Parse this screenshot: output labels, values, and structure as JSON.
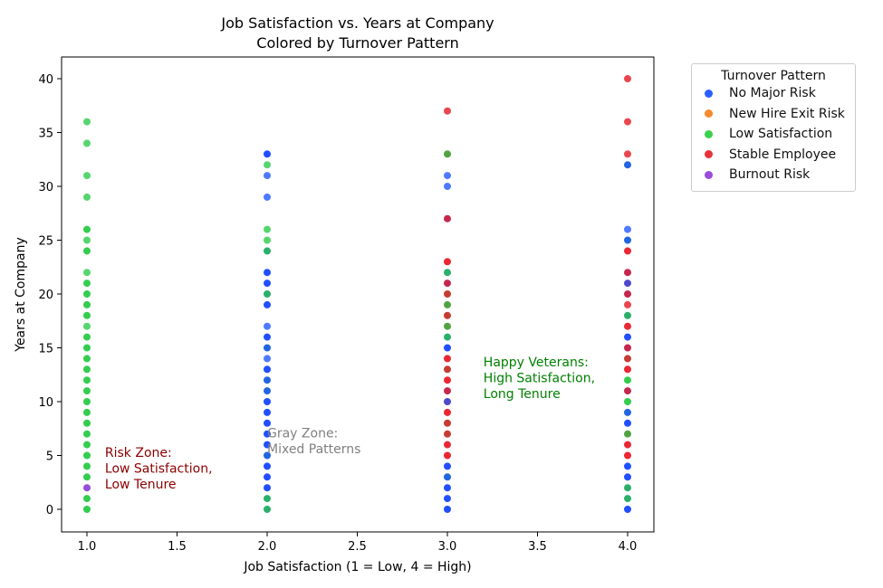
{
  "chart_data": {
    "type": "scatter",
    "title": "Job Satisfaction vs. Years at Company",
    "subtitle": "Colored by Turnover Pattern",
    "xlabel": "Job Satisfaction (1 = Low, 4 = High)",
    "ylabel": "Years at Company",
    "xlim": [
      0.86,
      4.14
    ],
    "ylim": [
      -2,
      42
    ],
    "xticks": [
      "1.0",
      "1.5",
      "2.0",
      "2.5",
      "3.0",
      "3.5",
      "4.0"
    ],
    "yticks": [
      "0",
      "5",
      "10",
      "15",
      "20",
      "25",
      "30",
      "35",
      "40"
    ],
    "grid": false,
    "legend": {
      "title": "Turnover Pattern",
      "placement": "outside-top-right",
      "entries": [
        {
          "label": "No Major Risk",
          "color": "#2a5fff"
        },
        {
          "label": "New Hire Exit Risk",
          "color": "#f78a2c"
        },
        {
          "label": "Low Satisfaction",
          "color": "#3ad24a"
        },
        {
          "label": "Stable Employee",
          "color": "#e8333a"
        },
        {
          "label": "Burnout Risk",
          "color": "#9b4de0"
        }
      ]
    },
    "annotations": [
      {
        "lines": [
          "Risk Zone:",
          "Low Satisfaction,",
          "Low Tenure"
        ],
        "x": 1.1,
        "y": 5.2,
        "color": "#8b0000"
      },
      {
        "lines": [
          "Gray Zone:",
          "Mixed Patterns"
        ],
        "x": 2.0,
        "y": 7.0,
        "color": "#808080"
      },
      {
        "lines": [
          "Happy Veterans:",
          "High Satisfaction,",
          "Long Tenure"
        ],
        "x": 3.2,
        "y": 13.6,
        "color": "#008000"
      }
    ],
    "points": [
      [
        1,
        36,
        "#45d160"
      ],
      [
        1,
        34,
        "#45d160"
      ],
      [
        1,
        31,
        "#45d160"
      ],
      [
        1,
        29,
        "#45d160"
      ],
      [
        1,
        26,
        "#1ec83c"
      ],
      [
        1,
        25,
        "#45d160"
      ],
      [
        1,
        24,
        "#1ec83c"
      ],
      [
        1,
        22,
        "#45d160"
      ],
      [
        1,
        21,
        "#1ec83c"
      ],
      [
        1,
        20,
        "#1ec83c"
      ],
      [
        1,
        19,
        "#1ec83c"
      ],
      [
        1,
        18,
        "#1ec83c"
      ],
      [
        1,
        17,
        "#45d160"
      ],
      [
        1,
        16,
        "#1ec83c"
      ],
      [
        1,
        15,
        "#1ec83c"
      ],
      [
        1,
        14,
        "#1ec83c"
      ],
      [
        1,
        13,
        "#1ec83c"
      ],
      [
        1,
        12,
        "#1ec83c"
      ],
      [
        1,
        11,
        "#1ec83c"
      ],
      [
        1,
        10,
        "#1ec83c"
      ],
      [
        1,
        9,
        "#1ec83c"
      ],
      [
        1,
        8,
        "#1ec83c"
      ],
      [
        1,
        7,
        "#1ec83c"
      ],
      [
        1,
        6,
        "#1ec83c"
      ],
      [
        1,
        5,
        "#1ec83c"
      ],
      [
        1,
        4,
        "#1ec83c"
      ],
      [
        1,
        3,
        "#1ec83c"
      ],
      [
        1,
        2,
        "#8a3ad8"
      ],
      [
        1,
        1,
        "#1ec83c"
      ],
      [
        1,
        0,
        "#1ec83c"
      ],
      [
        2,
        33,
        "#0a3dff"
      ],
      [
        2,
        32,
        "#45d160"
      ],
      [
        2,
        31,
        "#3d6bff"
      ],
      [
        2,
        29,
        "#3d6bff"
      ],
      [
        2,
        26,
        "#45d160"
      ],
      [
        2,
        25,
        "#45d160"
      ],
      [
        2,
        24,
        "#14a85a"
      ],
      [
        2,
        22,
        "#0a3dff"
      ],
      [
        2,
        21,
        "#0a3dff"
      ],
      [
        2,
        20,
        "#14a85a"
      ],
      [
        2,
        19,
        "#0a3dff"
      ],
      [
        2,
        17,
        "#3d6bff"
      ],
      [
        2,
        16,
        "#0a3dff"
      ],
      [
        2,
        15,
        "#0a55dd"
      ],
      [
        2,
        14,
        "#3d6bff"
      ],
      [
        2,
        13,
        "#0a3dff"
      ],
      [
        2,
        12,
        "#0a55dd"
      ],
      [
        2,
        11,
        "#0a55dd"
      ],
      [
        2,
        10,
        "#0a3dff"
      ],
      [
        2,
        9,
        "#0a3dff"
      ],
      [
        2,
        8,
        "#0a3dff"
      ],
      [
        2,
        7,
        "#0a3dff"
      ],
      [
        2,
        6,
        "#0a3dff"
      ],
      [
        2,
        5,
        "#0a55dd"
      ],
      [
        2,
        4,
        "#0a3dff"
      ],
      [
        2,
        3,
        "#0a3dff"
      ],
      [
        2,
        2,
        "#0a3dff"
      ],
      [
        2,
        1,
        "#14a85a"
      ],
      [
        2,
        0,
        "#14a85a"
      ],
      [
        3,
        37,
        "#e8333a"
      ],
      [
        3,
        33,
        "#3f9a2e"
      ],
      [
        3,
        31,
        "#3d6bff"
      ],
      [
        3,
        30,
        "#3d6bff"
      ],
      [
        3,
        27,
        "#c0103a"
      ],
      [
        3,
        23,
        "#e8101e"
      ],
      [
        3,
        22,
        "#14a85a"
      ],
      [
        3,
        21,
        "#c0103a"
      ],
      [
        3,
        20,
        "#c0281e"
      ],
      [
        3,
        19,
        "#3f9a2e"
      ],
      [
        3,
        18,
        "#c0281e"
      ],
      [
        3,
        17,
        "#3f9a2e"
      ],
      [
        3,
        16,
        "#14a85a"
      ],
      [
        3,
        15,
        "#0a3dff"
      ],
      [
        3,
        14,
        "#e8101e"
      ],
      [
        3,
        13,
        "#c0281e"
      ],
      [
        3,
        12,
        "#e8101e"
      ],
      [
        3,
        11,
        "#c0103a"
      ],
      [
        3,
        10,
        "#3b35c8"
      ],
      [
        3,
        9,
        "#e8101e"
      ],
      [
        3,
        8,
        "#c0281e"
      ],
      [
        3,
        7,
        "#c0281e"
      ],
      [
        3,
        6,
        "#e8101e"
      ],
      [
        3,
        5,
        "#e8101e"
      ],
      [
        3,
        4,
        "#0a3dff"
      ],
      [
        3,
        3,
        "#0a55dd"
      ],
      [
        3,
        2,
        "#0a3dff"
      ],
      [
        3,
        1,
        "#0a3dff"
      ],
      [
        3,
        0,
        "#0a3dff"
      ],
      [
        4,
        40,
        "#e8333a"
      ],
      [
        4,
        36,
        "#e8333a"
      ],
      [
        4,
        33,
        "#e8333a"
      ],
      [
        4,
        32,
        "#0a55dd"
      ],
      [
        4,
        26,
        "#3d6bff"
      ],
      [
        4,
        25,
        "#0a55dd"
      ],
      [
        4,
        24,
        "#e8101e"
      ],
      [
        4,
        22,
        "#c0103a"
      ],
      [
        4,
        21,
        "#3b35c8"
      ],
      [
        4,
        20,
        "#c0103a"
      ],
      [
        4,
        19,
        "#e8333a"
      ],
      [
        4,
        18,
        "#14a85a"
      ],
      [
        4,
        17,
        "#e8101e"
      ],
      [
        4,
        16,
        "#0a3dff"
      ],
      [
        4,
        15,
        "#c0103a"
      ],
      [
        4,
        14,
        "#c0281e"
      ],
      [
        4,
        13,
        "#e8101e"
      ],
      [
        4,
        12,
        "#1ec83c"
      ],
      [
        4,
        11,
        "#c0103a"
      ],
      [
        4,
        10,
        "#1ec83c"
      ],
      [
        4,
        9,
        "#0a55dd"
      ],
      [
        4,
        8,
        "#0a3dff"
      ],
      [
        4,
        7,
        "#3f9a2e"
      ],
      [
        4,
        6,
        "#e8101e"
      ],
      [
        4,
        5,
        "#e8101e"
      ],
      [
        4,
        4,
        "#0a3dff"
      ],
      [
        4,
        3,
        "#0a3dff"
      ],
      [
        4,
        2,
        "#14a85a"
      ],
      [
        4,
        1,
        "#14a85a"
      ],
      [
        4,
        0,
        "#0a3dff"
      ]
    ]
  }
}
